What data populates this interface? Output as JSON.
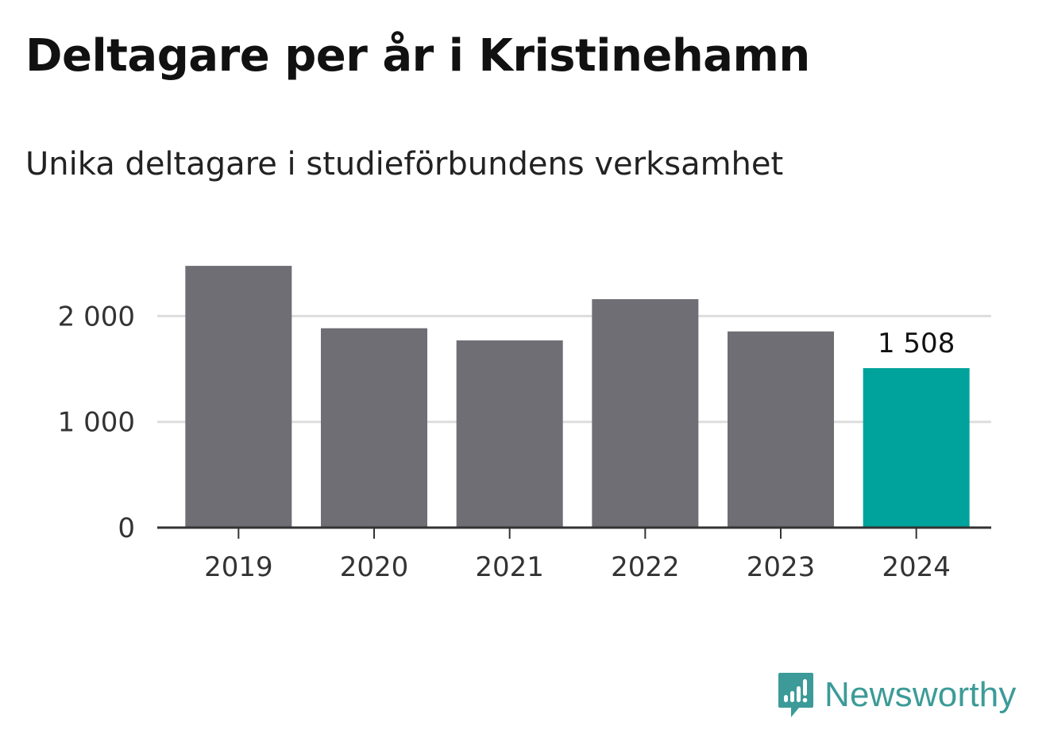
{
  "title": "Deltagare per år i Kristinehamn",
  "subtitle": "Unika deltagare i studieförbundens verksamhet",
  "brand": {
    "name": "Newsworthy",
    "icon": "newsworthy-logo-icon",
    "color": "#3c9b98"
  },
  "chart_data": {
    "type": "bar",
    "categories": [
      "2019",
      "2020",
      "2021",
      "2022",
      "2023",
      "2024"
    ],
    "values": [
      2475,
      1885,
      1770,
      2160,
      1855,
      1508
    ],
    "highlight_index": 5,
    "highlight_label": "1 508",
    "ylim": [
      0,
      2500
    ],
    "yticks": [
      0,
      1000,
      2000
    ],
    "ytick_labels": [
      "0",
      "1 000",
      "2 000"
    ],
    "grid": true,
    "colors": {
      "bar": "#6f6e74",
      "highlight": "#00a39b",
      "grid": "#dddddd",
      "axis": "#333333"
    }
  }
}
